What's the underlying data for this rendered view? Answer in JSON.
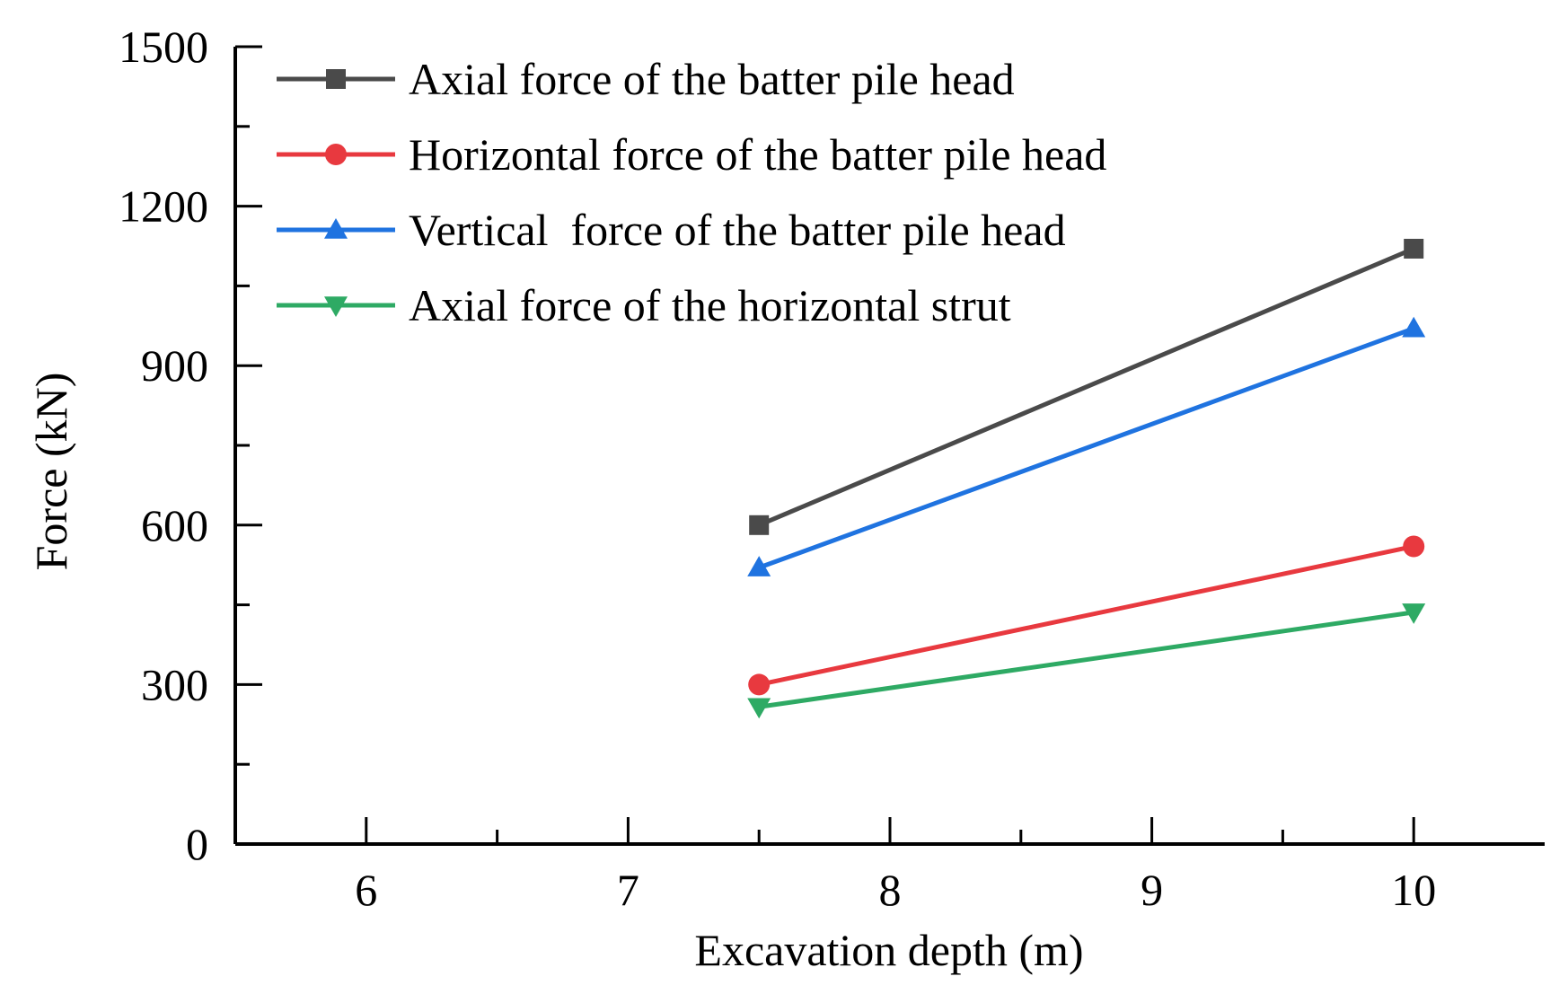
{
  "chart_data": {
    "type": "line",
    "xlabel": "Excavation depth (m)",
    "ylabel": "Force (kN)",
    "xlim": [
      5.5,
      10.5
    ],
    "ylim": [
      0,
      1500
    ],
    "xticks": [
      6,
      7,
      8,
      9,
      10
    ],
    "xminor": [
      6.5,
      7.5,
      8.5,
      9.5
    ],
    "yticks": [
      0,
      300,
      600,
      900,
      1200,
      1500
    ],
    "yminor": [
      150,
      450,
      750,
      1050,
      1350
    ],
    "grid": false,
    "legend": "top-left",
    "series": [
      {
        "name": "Axial force of the batter pile head",
        "color": "#4a4a4a",
        "marker": "square",
        "x": [
          7.5,
          10
        ],
        "y": [
          600,
          1120
        ]
      },
      {
        "name": "Horizontal force of the batter pile head",
        "color": "#e8393f",
        "marker": "circle",
        "x": [
          7.5,
          10
        ],
        "y": [
          300,
          560
        ]
      },
      {
        "name": "Vertical  force of the batter pile head",
        "color": "#1f73e0",
        "marker": "triangle-up",
        "x": [
          7.5,
          10
        ],
        "y": [
          520,
          970
        ]
      },
      {
        "name": "Axial force of the horizontal strut",
        "color": "#2eaa64",
        "marker": "triangle-down",
        "x": [
          7.5,
          10
        ],
        "y": [
          258,
          436
        ]
      }
    ]
  }
}
